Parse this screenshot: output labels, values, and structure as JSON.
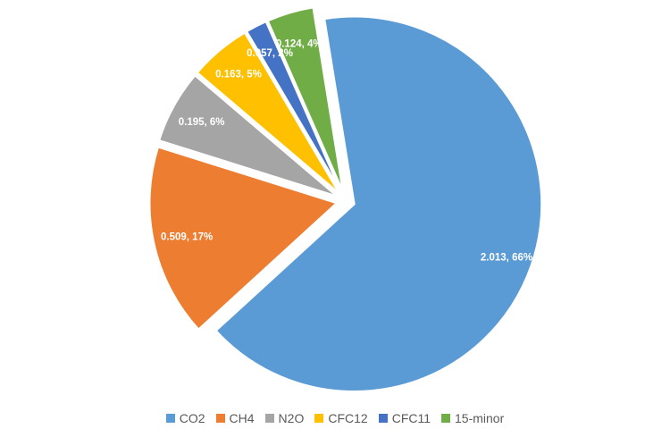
{
  "chart_data": {
    "type": "pie",
    "legend_position": "bottom",
    "exploded": true,
    "slices": [
      {
        "name": "CO2",
        "value": 2.013,
        "percent_label": "66%",
        "label": "2.013, 66%",
        "color": "#5B9BD5"
      },
      {
        "name": "CH4",
        "value": 0.509,
        "percent_label": "17%",
        "label": "0.509, 17%",
        "color": "#ED7D31"
      },
      {
        "name": "N2O",
        "value": 0.195,
        "percent_label": "6%",
        "label": "0.195, 6%",
        "color": "#A5A5A5"
      },
      {
        "name": "CFC12",
        "value": 0.163,
        "percent_label": "5%",
        "label": "0.163, 5%",
        "color": "#FFC000"
      },
      {
        "name": "CFC11",
        "value": 0.057,
        "percent_label": "2%",
        "label": "0.057, 2%",
        "color": "#4472C4"
      },
      {
        "name": "15-minor",
        "value": 0.124,
        "percent_label": "4%",
        "label": "0.124, 4%",
        "color": "#70AD47"
      }
    ]
  }
}
